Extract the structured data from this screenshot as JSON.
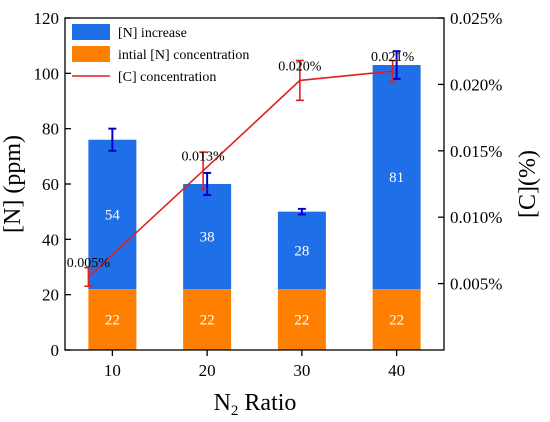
{
  "chart_data": {
    "type": "bar",
    "categories": [
      "10",
      "20",
      "30",
      "40"
    ],
    "xlabel": "N",
    "xlabel_sub": "2",
    "xlabel_rest": " Ratio",
    "ylabel": "[N] (ppm)",
    "y2label": "[C](%)",
    "ylim": [
      0,
      120
    ],
    "y2lim": [
      0,
      0.025
    ],
    "y_ticks": [
      "0",
      "20",
      "40",
      "60",
      "80",
      "100",
      "120"
    ],
    "y_tick_values": [
      0,
      20,
      40,
      60,
      80,
      100,
      120
    ],
    "y2_ticks": [
      "0.005%",
      "0.010%",
      "0.015%",
      "0.020%",
      "0.025%"
    ],
    "y2_tick_values": [
      0.005,
      0.01,
      0.015,
      0.02,
      0.025
    ],
    "series": [
      {
        "name": "intial [N] concentration",
        "kind": "bar",
        "color": "#ff8000",
        "values": [
          22,
          22,
          22,
          22
        ],
        "labels": [
          "22",
          "22",
          "22",
          "22"
        ]
      },
      {
        "name": "[N] increase",
        "kind": "bar",
        "color": "#1f6fe8",
        "values": [
          54,
          38,
          28,
          81
        ],
        "labels": [
          "54",
          "38",
          "28",
          "81"
        ],
        "error": [
          4,
          4,
          1,
          5
        ],
        "error_color": "#0000cc"
      },
      {
        "name": "[C] concentration",
        "kind": "line",
        "color": "#e02020",
        "axis": "y2",
        "x": [
          10,
          20,
          30,
          40
        ],
        "values": [
          0.0055,
          0.0135,
          0.0203,
          0.021
        ],
        "labels": [
          "0.005%",
          "0.013%",
          "0.020%",
          "0.021%"
        ],
        "error": [
          0.0007,
          0.0014,
          0.0015,
          0.0008
        ]
      }
    ],
    "legend": {
      "placement": "top-left",
      "order": [
        "[N] increase",
        "intial [N] concentration",
        "[C] concentration"
      ]
    }
  }
}
